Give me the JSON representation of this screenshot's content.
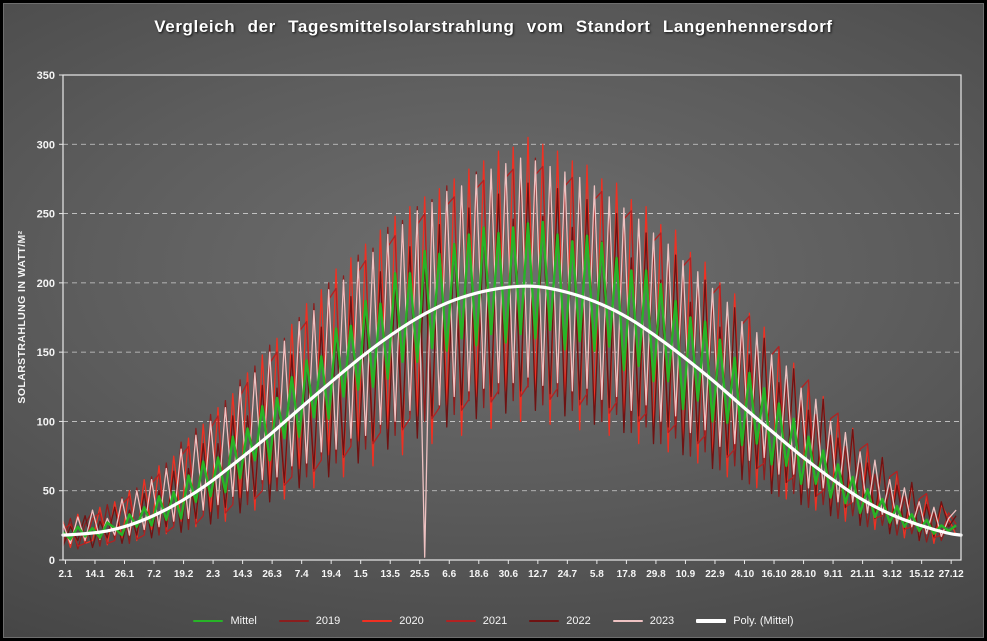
{
  "chart_data": {
    "type": "line",
    "title": "Vergleich der Tagesmittelsolarstrahlung vom Standort Langenhennersdorf",
    "xlabel": "",
    "ylabel": "SOLARSTRAHLUNG IN WATT/M²",
    "ylim": [
      0,
      350
    ],
    "yticks": [
      0,
      50,
      100,
      150,
      200,
      250,
      300,
      350
    ],
    "x_range_days": [
      1,
      366
    ],
    "xtick_labels": [
      "2.1",
      "14.1",
      "26.1",
      "7.2",
      "19.2",
      "2.3",
      "14.3",
      "26.3",
      "7.4",
      "19.4",
      "1.5",
      "13.5",
      "25.5",
      "6.6",
      "18.6",
      "30.6",
      "12.7",
      "24.7",
      "5.8",
      "17.8",
      "29.8",
      "10.9",
      "22.9",
      "4.10",
      "16.10",
      "28.10",
      "9.11",
      "21.11",
      "3.12",
      "15.12",
      "27.12"
    ],
    "xtick_days": [
      2,
      14,
      26,
      38,
      50,
      62,
      74,
      86,
      98,
      110,
      122,
      134,
      146,
      158,
      170,
      182,
      194,
      206,
      218,
      230,
      242,
      254,
      266,
      278,
      290,
      302,
      314,
      326,
      338,
      350,
      362
    ],
    "grid": "horizontal-dashed",
    "legend_position": "bottom",
    "sample_days_spec": {
      "start": 1,
      "step": 3,
      "count": 122
    },
    "draw_order": [
      1,
      2,
      3,
      4,
      5,
      0,
      6
    ],
    "series": [
      {
        "name": "Mittel",
        "color": "#27b427",
        "width": 2.4,
        "values": [
          20,
          15,
          24,
          17,
          23,
          16,
          27,
          23,
          18,
          33,
          24,
          38,
          25,
          46,
          29,
          49,
          30,
          61,
          42,
          71,
          46,
          74,
          49,
          89,
          59,
          95,
          72,
          111,
          72,
          117,
          88,
          132,
          89,
          144,
          103,
          147,
          102,
          167,
          118,
          169,
          123,
          187,
          125,
          185,
          131,
          207,
          143,
          207,
          143,
          223,
          153,
          221,
          151,
          228,
          160,
          235,
          155,
          240,
          163,
          236,
          157,
          240,
          163,
          243,
          160,
          244,
          166,
          235,
          152,
          230,
          158,
          234,
          151,
          229,
          154,
          218,
          137,
          209,
          140,
          209,
          129,
          199,
          129,
          187,
          109,
          175,
          115,
          172,
          100,
          159,
          99,
          146,
          83,
          135,
          84,
          124,
          69,
          113,
          68,
          102,
          55,
          89,
          55,
          79,
          45,
          69,
          41,
          60,
          34,
          51,
          31,
          44,
          27,
          39,
          24,
          33,
          21,
          29,
          19,
          25,
          21,
          25
        ]
      },
      {
        "name": "2019",
        "color": "#8b1e1e",
        "width": 1.3,
        "values": [
          12,
          30,
          8,
          26,
          35,
          10,
          40,
          15,
          45,
          12,
          52,
          20,
          60,
          18,
          70,
          25,
          85,
          22,
          95,
          35,
          105,
          30,
          115,
          45,
          130,
          40,
          140,
          55,
          155,
          50,
          160,
          65,
          175,
          60,
          185,
          75,
          200,
          70,
          205,
          85,
          220,
          80,
          225,
          95,
          240,
          90,
          245,
          105,
          255,
          100,
          260,
          110,
          270,
          105,
          265,
          115,
          280,
          110,
          275,
          120,
          285,
          115,
          280,
          125,
          290,
          112,
          278,
          118,
          275,
          108,
          270,
          112,
          265,
          100,
          255,
          105,
          250,
          92,
          240,
          96,
          230,
          84,
          220,
          88,
          210,
          75,
          200,
          78,
          190,
          65,
          178,
          68,
          165,
          55,
          155,
          58,
          140,
          46,
          130,
          48,
          115,
          38,
          105,
          40,
          90,
          30,
          82,
          32,
          70,
          24,
          62,
          25,
          52,
          18,
          46,
          19,
          40,
          13,
          34,
          14,
          28,
          22
        ]
      },
      {
        "name": "2020",
        "color": "#f03022",
        "width": 1.3,
        "values": [
          28,
          9,
          33,
          12,
          14,
          38,
          11,
          42,
          16,
          50,
          14,
          58,
          22,
          68,
          19,
          75,
          28,
          88,
          24,
          98,
          35,
          110,
          28,
          120,
          45,
          135,
          36,
          148,
          55,
          160,
          44,
          170,
          66,
          185,
          52,
          195,
          76,
          210,
          60,
          218,
          86,
          228,
          68,
          238,
          95,
          248,
          76,
          255,
          104,
          262,
          84,
          268,
          112,
          275,
          90,
          282,
          118,
          288,
          95,
          295,
          122,
          298,
          100,
          305,
          120,
          300,
          98,
          295,
          115,
          288,
          94,
          285,
          108,
          275,
          90,
          272,
          100,
          260,
          84,
          255,
          92,
          242,
          78,
          238,
          82,
          222,
          70,
          215,
          72,
          200,
          60,
          192,
          62,
          178,
          52,
          168,
          52,
          152,
          44,
          142,
          42,
          128,
          36,
          118,
          34,
          104,
          28,
          95,
          26,
          82,
          22,
          74,
          20,
          62,
          16,
          55,
          14,
          46,
          12,
          40,
          30,
          18
        ]
      },
      {
        "name": "2021",
        "color": "#b22222",
        "width": 1.3,
        "values": [
          22,
          26,
          10,
          12,
          30,
          34,
          12,
          14,
          40,
          46,
          15,
          18,
          55,
          62,
          20,
          24,
          75,
          82,
          26,
          32,
          95,
          104,
          34,
          40,
          118,
          128,
          44,
          50,
          142,
          150,
          54,
          60,
          165,
          172,
          64,
          72,
          188,
          196,
          74,
          82,
          208,
          216,
          84,
          92,
          226,
          234,
          94,
          102,
          242,
          250,
          102,
          110,
          256,
          262,
          108,
          116,
          268,
          274,
          114,
          122,
          276,
          282,
          118,
          126,
          278,
          284,
          116,
          124,
          270,
          276,
          112,
          120,
          260,
          266,
          106,
          114,
          246,
          252,
          100,
          106,
          230,
          236,
          92,
          98,
          212,
          218,
          84,
          90,
          192,
          198,
          74,
          80,
          170,
          176,
          66,
          70,
          148,
          154,
          56,
          60,
          124,
          130,
          46,
          50,
          102,
          106,
          38,
          42,
          80,
          84,
          30,
          32,
          60,
          64,
          22,
          24,
          44,
          48,
          16,
          18,
          34,
          26
        ]
      },
      {
        "name": "2022",
        "color": "#6f1212",
        "width": 1.3,
        "values": [
          10,
          24,
          14,
          32,
          9,
          28,
          16,
          38,
          12,
          36,
          18,
          48,
          16,
          50,
          24,
          64,
          20,
          66,
          30,
          84,
          26,
          84,
          38,
          104,
          34,
          104,
          46,
          126,
          42,
          124,
          56,
          148,
          52,
          144,
          66,
          168,
          60,
          164,
          76,
          190,
          70,
          182,
          86,
          208,
          80,
          200,
          96,
          226,
          88,
          216,
          104,
          242,
          96,
          228,
          112,
          254,
          102,
          238,
          118,
          264,
          106,
          246,
          122,
          272,
          108,
          248,
          120,
          268,
          104,
          240,
          116,
          260,
          98,
          230,
          110,
          250,
          92,
          218,
          104,
          236,
          84,
          202,
          96,
          220,
          76,
          186,
          86,
          202,
          66,
          168,
          76,
          182,
          58,
          148,
          66,
          160,
          48,
          128,
          56,
          138,
          40,
          108,
          46,
          116,
          32,
          88,
          38,
          94,
          25,
          70,
          30,
          74,
          19,
          54,
          23,
          56,
          14,
          40,
          17,
          42,
          24,
          32
        ]
      },
      {
        "name": "2023",
        "color": "#eec2c2",
        "width": 1.3,
        "values": [
          26,
          12,
          31,
          14,
          36,
          15,
          30,
          18,
          44,
          18,
          50,
          22,
          58,
          24,
          66,
          28,
          80,
          30,
          90,
          36,
          100,
          40,
          110,
          46,
          125,
          50,
          135,
          58,
          150,
          60,
          158,
          68,
          172,
          70,
          180,
          78,
          195,
          80,
          202,
          88,
          215,
          90,
          222,
          98,
          235,
          100,
          242,
          108,
          252,
          2,
          258,
          112,
          266,
          118,
          270,
          122,
          278,
          124,
          282,
          128,
          286,
          128,
          290,
          132,
          288,
          126,
          284,
          128,
          280,
          122,
          276,
          124,
          270,
          116,
          262,
          118,
          254,
          108,
          246,
          112,
          236,
          100,
          228,
          104,
          216,
          92,
          208,
          94,
          196,
          82,
          186,
          84,
          172,
          72,
          164,
          74,
          148,
          62,
          140,
          62,
          124,
          52,
          116,
          52,
          100,
          42,
          92,
          42,
          78,
          34,
          72,
          33,
          58,
          26,
          52,
          24,
          42,
          19,
          38,
          17,
          30,
          36
        ]
      },
      {
        "name": "Poly. (Mittel)",
        "color": "#ffffff",
        "width": 3.2,
        "smooth": true,
        "x": [
          1,
          13,
          25,
          37,
          49,
          61,
          73,
          85,
          97,
          109,
          121,
          133,
          145,
          157,
          169,
          181,
          193,
          205,
          217,
          229,
          241,
          253,
          265,
          277,
          289,
          301,
          313,
          325,
          337,
          349,
          361,
          366
        ],
        "values": [
          18,
          19,
          23,
          31,
          42,
          56,
          73,
          90,
          109,
          127,
          145,
          161,
          175,
          186,
          193,
          197,
          198,
          194,
          187,
          177,
          163,
          147,
          130,
          111,
          93,
          75,
          59,
          44,
          33,
          25,
          19,
          18
        ]
      }
    ]
  }
}
